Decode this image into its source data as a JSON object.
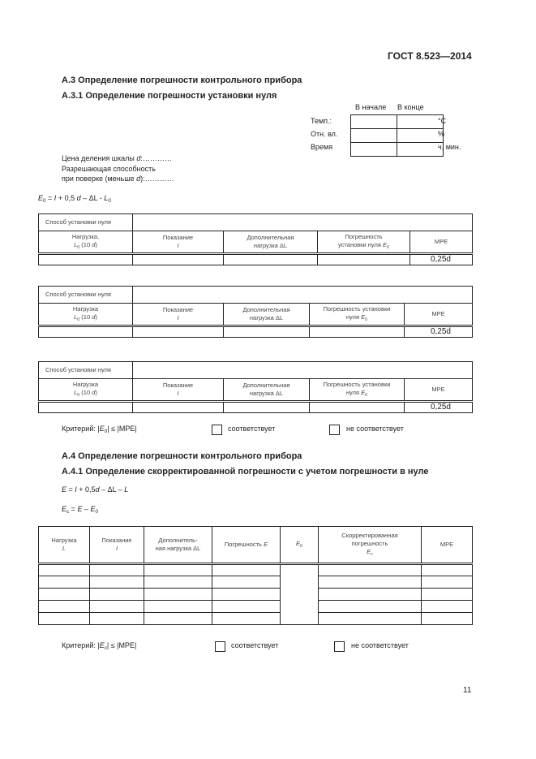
{
  "header": {
    "standard": "ГОСТ 8.523—2014"
  },
  "sectionA3": {
    "title": "А.3 Определение погрешности контрольного прибора",
    "subtitle": "А.3.1 Определение погрешности установки нуля"
  },
  "env": {
    "col_start": "В начале",
    "col_end": "В конце",
    "rows": [
      {
        "label": "Темп.:",
        "unit": "°C"
      },
      {
        "label": "Отн. вл.",
        "unit": "%"
      },
      {
        "label": "Время",
        "unit": "ч, мин."
      }
    ]
  },
  "params": {
    "line1_pre": "Цена деления шкалы ",
    "line1_var": "d",
    "line1_post": ":…………",
    "line2": "Разрешающая способность",
    "line3_pre": "при поверке (меньше ",
    "line3_var": "d",
    "line3_post": "):…………"
  },
  "formula1": [
    [
      "E",
      "i"
    ],
    [
      "0",
      "sub"
    ],
    [
      " = ",
      ""
    ],
    [
      "I",
      "i"
    ],
    [
      " + 0,5 ",
      ""
    ],
    [
      "d",
      "i"
    ],
    [
      " – ΔL - ",
      ""
    ],
    [
      "L",
      "i"
    ],
    [
      "0",
      "sub"
    ]
  ],
  "zero_tables": [
    {
      "method_label": "Способ установки нуля",
      "headers": [
        [
          [
            [
              "Нагрузка,",
              ""
            ]
          ],
          [
            [
              "L",
              "i"
            ],
            [
              "0",
              "sub"
            ],
            [
              " (10 ",
              ""
            ],
            [
              "d",
              "i"
            ],
            [
              ")",
              ""
            ]
          ]
        ],
        [
          [
            [
              "Показание",
              ""
            ]
          ],
          [
            [
              "I",
              "i"
            ]
          ]
        ],
        [
          [
            [
              "Дополнительная",
              ""
            ]
          ],
          [
            [
              "нагрузка ΔL",
              ""
            ]
          ]
        ],
        [
          [
            [
              "Погрешность",
              ""
            ]
          ],
          [
            [
              "установки нуля ",
              ""
            ],
            [
              "E",
              "i"
            ],
            [
              "0",
              "sub"
            ]
          ]
        ],
        [
          [
            [
              "MPE",
              ""
            ]
          ]
        ]
      ],
      "mpe_value": "0,25d"
    },
    {
      "method_label": "Способ установки нуля",
      "headers": [
        [
          [
            [
              "Нагрузка",
              ""
            ]
          ],
          [
            [
              "L",
              "i"
            ],
            [
              "0",
              "sub"
            ],
            [
              " (10 ",
              ""
            ],
            [
              "d",
              "i"
            ],
            [
              ")",
              ""
            ]
          ]
        ],
        [
          [
            [
              "Показание",
              ""
            ]
          ],
          [
            [
              "I",
              "i"
            ]
          ]
        ],
        [
          [
            [
              "Дополнительная",
              ""
            ]
          ],
          [
            [
              "нагрузка ΔL",
              ""
            ]
          ]
        ],
        [
          [
            [
              "Погрешность установки",
              ""
            ]
          ],
          [
            [
              "нуля ",
              ""
            ],
            [
              "E",
              "i"
            ],
            [
              "0",
              "sub"
            ]
          ]
        ],
        [
          [
            [
              "MPE",
              ""
            ]
          ]
        ]
      ],
      "mpe_value": "0,25d"
    },
    {
      "method_label": "Способ установки нуля",
      "headers": [
        [
          [
            [
              "Нагрузка",
              ""
            ]
          ],
          [
            [
              "L",
              "i"
            ],
            [
              "0",
              "sub"
            ],
            [
              " (10 ",
              ""
            ],
            [
              "d",
              "i"
            ],
            [
              ")",
              ""
            ]
          ]
        ],
        [
          [
            [
              "Показание",
              ""
            ]
          ],
          [
            [
              "I",
              "i"
            ]
          ]
        ],
        [
          [
            [
              "Дополнительная",
              ""
            ]
          ],
          [
            [
              "нагрузка ΔL",
              ""
            ]
          ]
        ],
        [
          [
            [
              "Погрешность установки",
              ""
            ]
          ],
          [
            [
              "нуля ",
              ""
            ],
            [
              "E",
              "i"
            ],
            [
              "0",
              "sub"
            ]
          ]
        ],
        [
          [
            [
              "MPE",
              ""
            ]
          ]
        ]
      ],
      "mpe_value": "0,25d"
    }
  ],
  "criterion1": {
    "text": [
      [
        "Критерий: |",
        ""
      ],
      [
        "E",
        "i"
      ],
      [
        "0",
        "sub"
      ],
      [
        "|  ≤ |MPE|",
        ""
      ]
    ],
    "opt_yes": "соответствует",
    "opt_no": "не соответствует"
  },
  "sectionA4": {
    "title": "А.4 Определение погрешности контрольного прибора",
    "subtitle": "А.4.1 Определение скорректированной погрешности с учетом погрешности в нуле"
  },
  "formula2": [
    [
      "E",
      "i"
    ],
    [
      " = ",
      ""
    ],
    [
      "I",
      "i"
    ],
    [
      " + 0,5",
      ""
    ],
    [
      "d",
      "i"
    ],
    [
      " – ΔL – ",
      ""
    ],
    [
      "L",
      "i"
    ]
  ],
  "formula3": [
    [
      "E",
      "i"
    ],
    [
      "c",
      "sub"
    ],
    [
      " = ",
      ""
    ],
    [
      "E",
      "i"
    ],
    [
      " – ",
      ""
    ],
    [
      "E",
      "i"
    ],
    [
      "0",
      "sub"
    ]
  ],
  "corr_table": {
    "headers": [
      [
        [
          [
            "Нагрузка",
            ""
          ]
        ],
        [
          [
            "L",
            "i"
          ]
        ]
      ],
      [
        [
          [
            "Показание",
            ""
          ]
        ],
        [
          [
            "I",
            "i"
          ]
        ]
      ],
      [
        [
          [
            "Дополнитель-",
            ""
          ]
        ],
        [
          [
            "ная нагрузка ΔL",
            ""
          ]
        ]
      ],
      [
        [
          [
            "Погрешность ",
            ""
          ],
          [
            "E",
            "i"
          ]
        ]
      ],
      [
        [
          [
            "E",
            "i"
          ],
          [
            "0",
            "sub"
          ]
        ]
      ],
      [
        [
          [
            "Скорректированная",
            ""
          ]
        ],
        [
          [
            "погрешность",
            ""
          ]
        ],
        [
          [
            "E",
            "i"
          ],
          [
            "c",
            "sub"
          ]
        ]
      ],
      [
        [
          [
            "MPE",
            ""
          ]
        ]
      ]
    ],
    "rows": 5
  },
  "criterion2": {
    "text": [
      [
        "Критерий: |",
        ""
      ],
      [
        "E",
        "i"
      ],
      [
        "c",
        "sub"
      ],
      [
        "|  ≤ |MPE|",
        ""
      ]
    ],
    "opt_yes": "соответствует",
    "opt_no": "не соответствует"
  },
  "footer": {
    "page_number": "11"
  }
}
